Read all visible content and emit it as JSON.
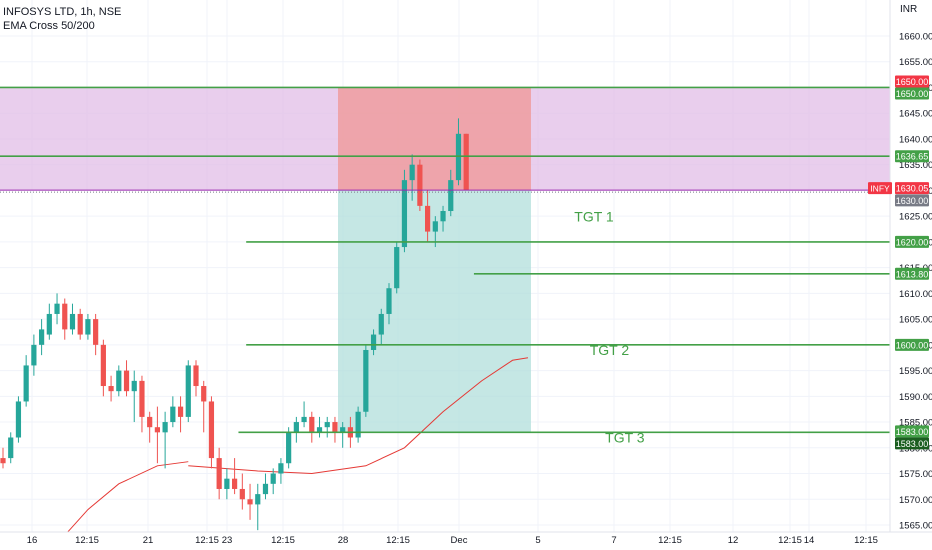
{
  "header": {
    "symbol_line": "INFOSYS LTD, 1h, NSE",
    "indicator_line": "EMA Cross 50/200",
    "currency": "INR"
  },
  "colors": {
    "up": "#26a69a",
    "down": "#ef5350",
    "zone_fill": "#e1bee7",
    "stop_fill": "#ef9a9a",
    "target_fill": "#b2dfdb",
    "level_line": "#43a047",
    "ema": "#e53935",
    "grid": "#f0f3fa",
    "axis_text": "#131722"
  },
  "chart_data": {
    "type": "candlestick",
    "symbol": "INFY",
    "ylim": [
      1563,
      1663
    ],
    "y_ticks": [
      1565,
      1570,
      1575,
      1580,
      1585,
      1590,
      1595,
      1600,
      1605,
      1610,
      1615,
      1620,
      1625,
      1630,
      1635,
      1640,
      1645,
      1650,
      1655,
      1660
    ],
    "x_ticks": [
      "16",
      "12:15",
      "21",
      "12:15",
      "23",
      "12:15",
      "28",
      "12:15",
      "Dec",
      "5",
      "7",
      "12:15",
      "12",
      "12:15",
      "14",
      "12:15"
    ],
    "candles": [
      [
        1578,
        1580,
        1576,
        1577
      ],
      [
        1578,
        1583,
        1577,
        1582
      ],
      [
        1582,
        1590,
        1581,
        1589
      ],
      [
        1589,
        1598,
        1588,
        1596
      ],
      [
        1596,
        1602,
        1594,
        1600
      ],
      [
        1600,
        1605,
        1598,
        1603
      ],
      [
        1602,
        1608,
        1601,
        1606
      ],
      [
        1606,
        1610,
        1604,
        1608
      ],
      [
        1608,
        1609,
        1601,
        1603
      ],
      [
        1603,
        1608,
        1602,
        1606
      ],
      [
        1606,
        1607,
        1601,
        1602
      ],
      [
        1602,
        1606,
        1601,
        1605
      ],
      [
        1605,
        1606,
        1598,
        1600
      ],
      [
        1600,
        1601,
        1590,
        1592
      ],
      [
        1592,
        1594,
        1589,
        1591
      ],
      [
        1591,
        1596,
        1590,
        1595
      ],
      [
        1595,
        1597,
        1590,
        1591
      ],
      [
        1591,
        1595,
        1585,
        1593
      ],
      [
        1593,
        1594,
        1583,
        1586
      ],
      [
        1586,
        1587,
        1581,
        1584
      ],
      [
        1584,
        1588,
        1577,
        1583
      ],
      [
        1583,
        1587,
        1576,
        1585
      ],
      [
        1585,
        1590,
        1584,
        1588
      ],
      [
        1588,
        1590,
        1583,
        1586
      ],
      [
        1586,
        1597,
        1585,
        1596
      ],
      [
        1596,
        1597,
        1590,
        1592
      ],
      [
        1592,
        1593,
        1583,
        1589
      ],
      [
        1589,
        1590,
        1576,
        1578
      ],
      [
        1578,
        1580,
        1570,
        1572
      ],
      [
        1572,
        1576,
        1570,
        1574
      ],
      [
        1574,
        1578,
        1571,
        1572
      ],
      [
        1572,
        1575,
        1568,
        1570
      ],
      [
        1570,
        1573,
        1566,
        1569
      ],
      [
        1569,
        1573,
        1564,
        1571
      ],
      [
        1571,
        1575,
        1570,
        1573
      ],
      [
        1573,
        1576,
        1571,
        1575
      ],
      [
        1575,
        1578,
        1573,
        1577
      ],
      [
        1577,
        1584,
        1576,
        1583
      ],
      [
        1583,
        1586,
        1581,
        1585
      ],
      [
        1585,
        1589,
        1584,
        1586
      ],
      [
        1586,
        1587,
        1581,
        1583
      ],
      [
        1583,
        1586,
        1582,
        1584
      ],
      [
        1584,
        1586,
        1582,
        1585
      ],
      [
        1585,
        1586,
        1581,
        1583
      ],
      [
        1583,
        1585,
        1580,
        1584
      ],
      [
        1584,
        1586,
        1580,
        1582
      ],
      [
        1582,
        1588,
        1581,
        1587
      ],
      [
        1587,
        1600,
        1586,
        1599
      ],
      [
        1599,
        1603,
        1598,
        1602
      ],
      [
        1602,
        1607,
        1600,
        1606
      ],
      [
        1606,
        1612,
        1604,
        1611
      ],
      [
        1611,
        1620,
        1610,
        1619
      ],
      [
        1619,
        1634,
        1618,
        1632
      ],
      [
        1632,
        1637,
        1628,
        1635
      ],
      [
        1635,
        1636,
        1626,
        1627
      ],
      [
        1627,
        1630,
        1620,
        1622
      ],
      [
        1622,
        1625,
        1619,
        1624
      ],
      [
        1624,
        1627,
        1622,
        1626
      ],
      [
        1626,
        1634,
        1625,
        1632
      ],
      [
        1632,
        1644,
        1631,
        1641
      ],
      [
        1641,
        1641,
        1630,
        1630
      ]
    ],
    "ema_50": [
      [
        24,
        1576.5
      ],
      [
        33,
        1575.5
      ],
      [
        40,
        1575
      ],
      [
        47,
        1576.5
      ],
      [
        52,
        1580
      ],
      [
        57,
        1587
      ],
      [
        62,
        1593
      ],
      [
        66,
        1597
      ],
      [
        68,
        1597.5
      ]
    ],
    "ema_200": [
      [
        8,
        1563
      ],
      [
        11,
        1568
      ],
      [
        15,
        1573
      ],
      [
        20,
        1576.5
      ],
      [
        24,
        1577.3
      ]
    ],
    "zones": {
      "entry_zone": [
        1630,
        1650
      ],
      "stop_box": {
        "from_candle": 68,
        "to_candle": 95,
        "y": [
          1630,
          1650
        ]
      },
      "target_box": {
        "from_candle": 68,
        "to_candle": 95,
        "y": [
          1583,
          1630
        ]
      }
    },
    "levels": [
      {
        "value": 1650,
        "label": "1650.00",
        "from_candle": 0,
        "color": "#43a047"
      },
      {
        "value": 1636.65,
        "label": "1636.65",
        "from_candle": 0,
        "color": "#43a047"
      },
      {
        "value": 1630.05,
        "label": "1630.05",
        "from_candle": 0,
        "color": "#9c27b0"
      },
      {
        "value": 1620,
        "label": "1620.00",
        "from_candle": 31.5,
        "color": "#43a047"
      },
      {
        "value": 1613.8,
        "label": "1613.80",
        "from_candle": 61,
        "color": "#43a047"
      },
      {
        "value": 1600,
        "label": "1600.00",
        "from_candle": 31.5,
        "color": "#43a047"
      },
      {
        "value": 1583,
        "label": "1583.00",
        "from_candle": 30.5,
        "color": "#43a047"
      }
    ],
    "price_tags": [
      {
        "value": 1650,
        "label": "1650.00",
        "bg": "#f23645",
        "offset": -6
      },
      {
        "value": 1650,
        "label": "1650.00",
        "bg": "#43a047",
        "offset": 6
      },
      {
        "value": 1636.65,
        "label": "1636.65",
        "bg": "#43a047",
        "offset": 0
      },
      {
        "value": 1630.05,
        "label": "1630.05",
        "bg": "#f23645",
        "offset": -2,
        "prefix": "INFY"
      },
      {
        "value": 1630,
        "label": "1630.00",
        "bg": "#787b86",
        "offset": 10
      },
      {
        "value": 1620,
        "label": "1620.00",
        "bg": "#43a047",
        "offset": 0
      },
      {
        "value": 1613.8,
        "label": "1613.80",
        "bg": "#43a047",
        "offset": 0
      },
      {
        "value": 1600,
        "label": "1600.00",
        "bg": "#43a047",
        "offset": 0
      },
      {
        "value": 1583,
        "label": "1583.00",
        "bg": "#43a047",
        "offset": -1
      },
      {
        "value": 1583,
        "label": "1583.00",
        "bg": "#1b5e20",
        "offset": 11
      }
    ],
    "annotations": [
      {
        "text": "TGT 1",
        "candle": 74,
        "value": 1624
      },
      {
        "text": "TGT 2",
        "candle": 76,
        "value": 1598
      },
      {
        "text": "TGT 3",
        "candle": 78,
        "value": 1581
      }
    ]
  }
}
